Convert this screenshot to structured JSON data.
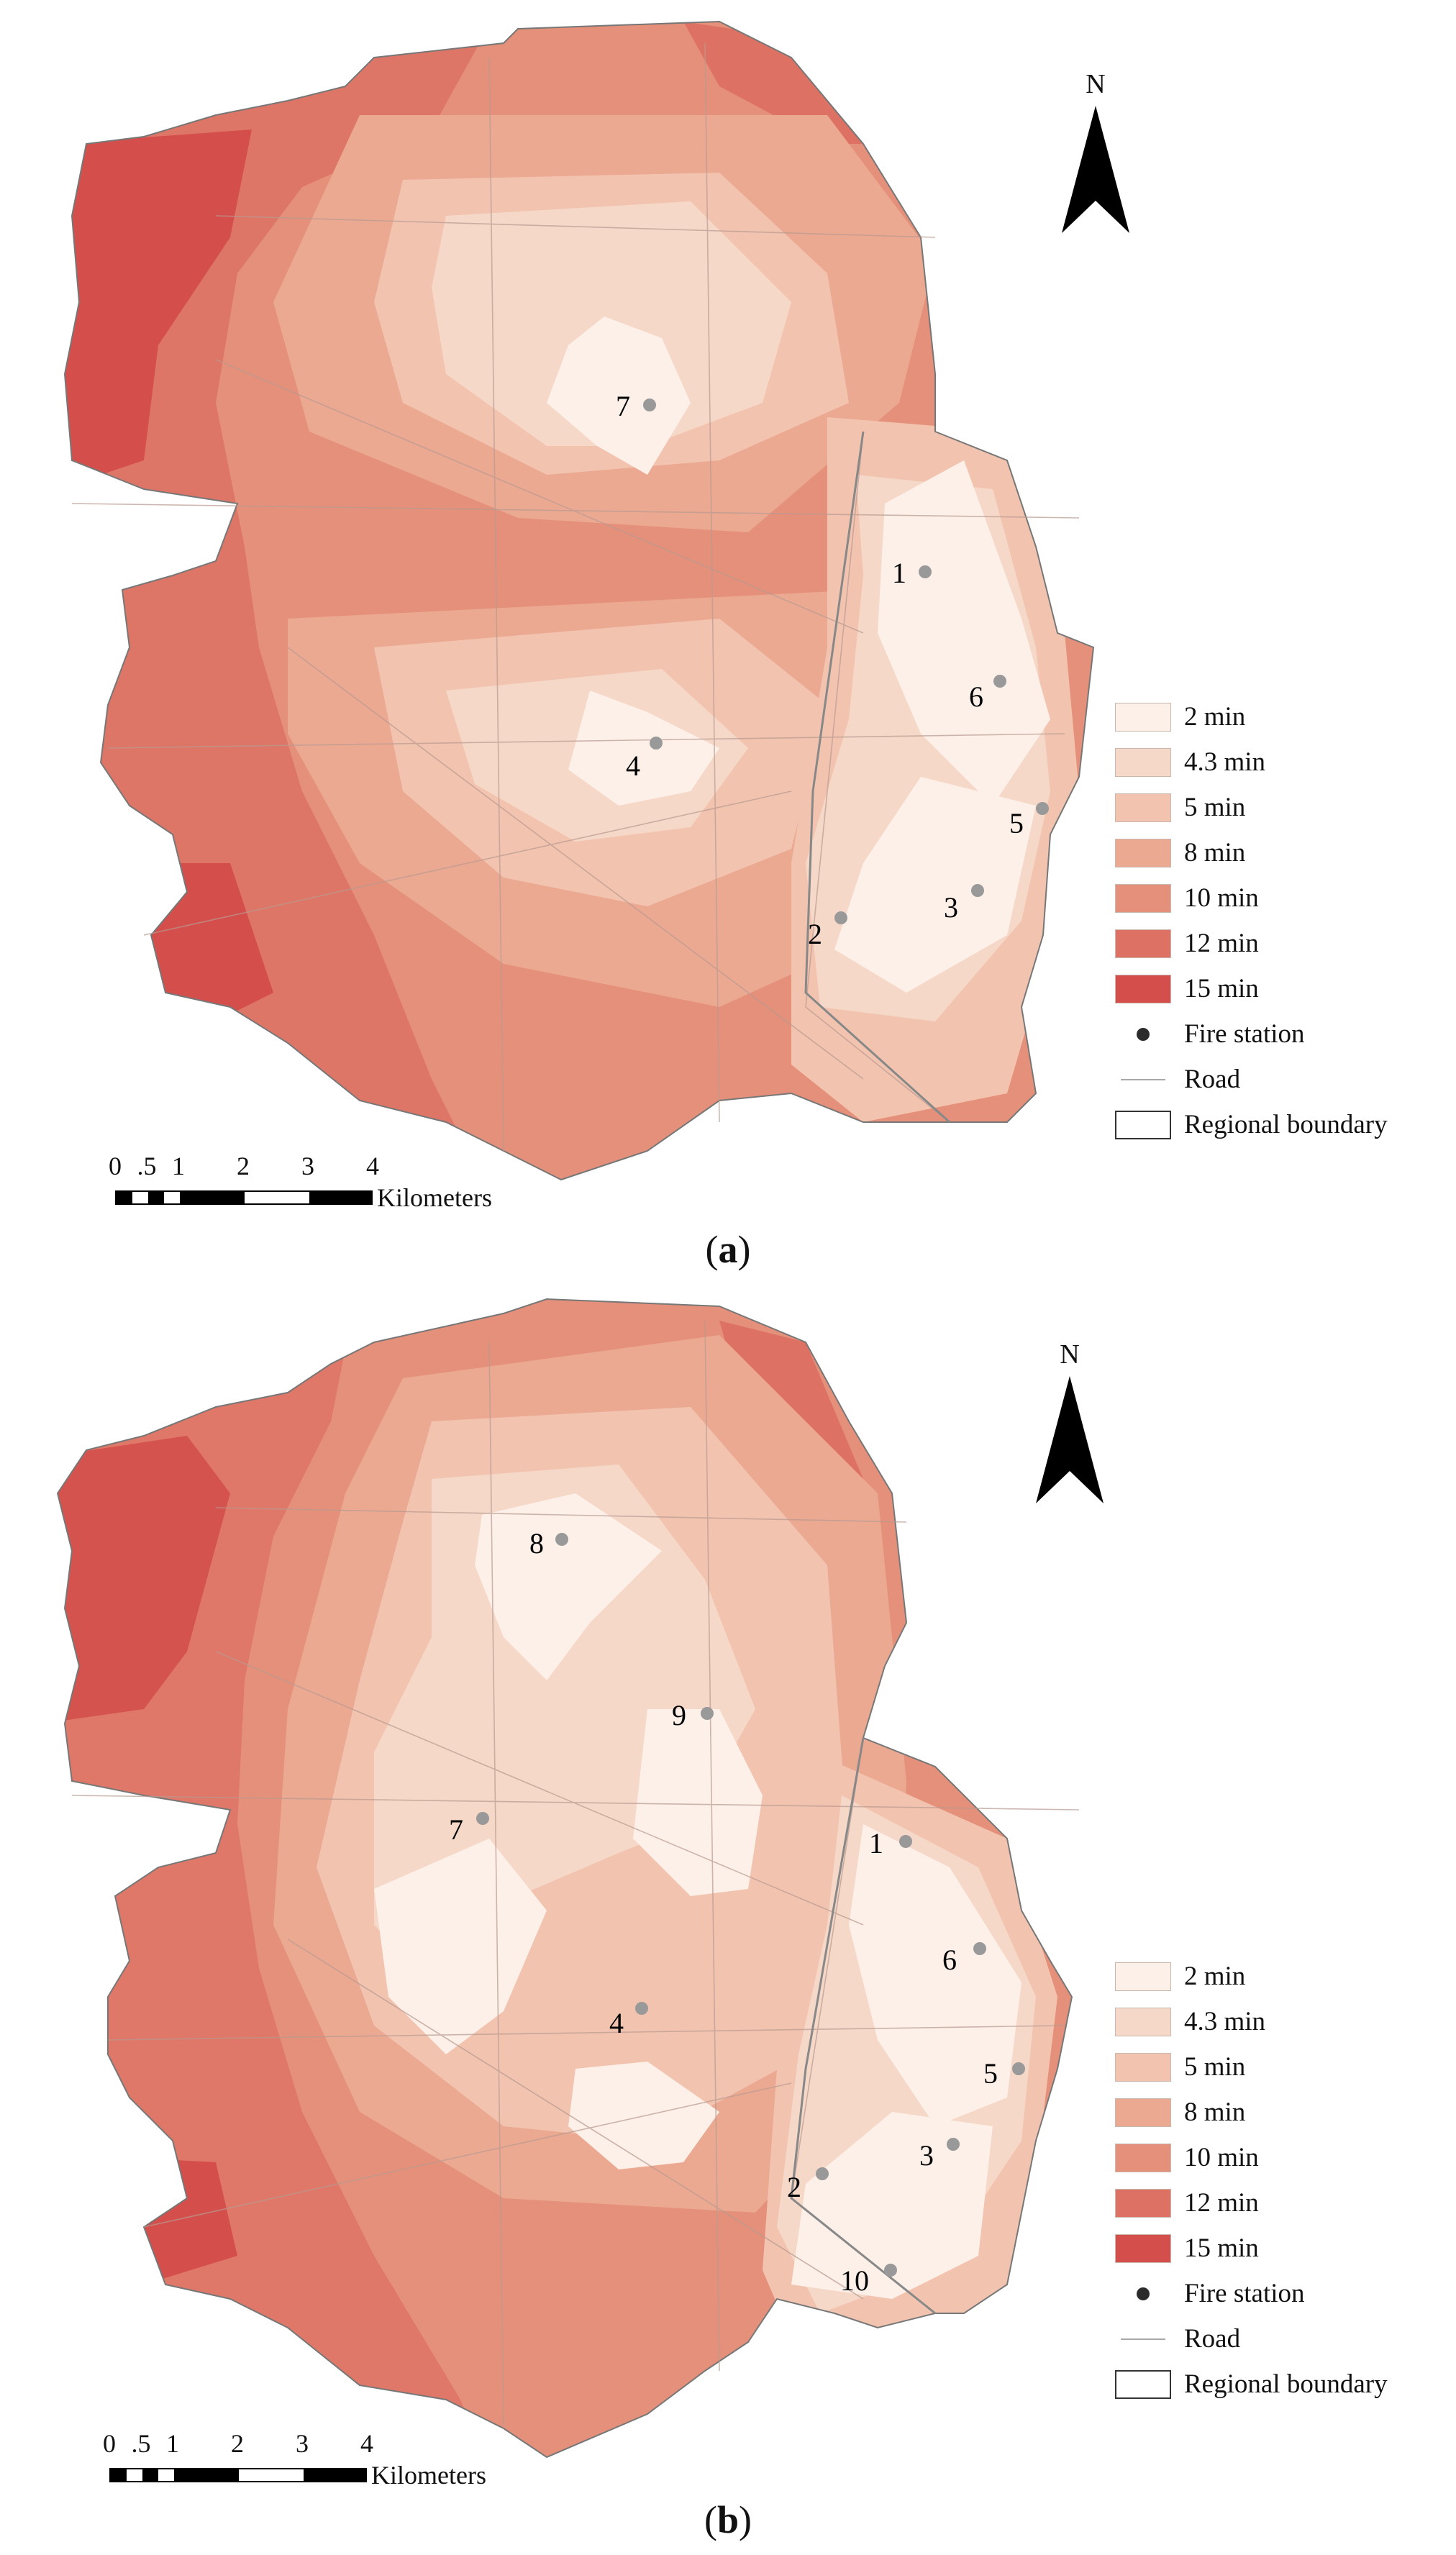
{
  "panels": [
    {
      "caption": "a",
      "north_label": "N",
      "legend": {
        "zones": [
          {
            "label": "2 min",
            "color": "#fdf0e8"
          },
          {
            "label": "4.3 min",
            "color": "#f6d8c8"
          },
          {
            "label": "5 min",
            "color": "#f2c4b0"
          },
          {
            "label": "8 min",
            "color": "#eba992"
          },
          {
            "label": "10 min",
            "color": "#e5907a"
          },
          {
            "label": "12 min",
            "color": "#dd7264"
          },
          {
            "label": "15 min",
            "color": "#d44f4c"
          }
        ],
        "fire_station": "Fire station",
        "road": "Road",
        "boundary": "Regional boundary"
      },
      "scale": {
        "ticks": [
          "0",
          ".5",
          "1",
          "2",
          "3",
          "4"
        ],
        "unit": "Kilometers"
      },
      "stations": [
        "7",
        "1",
        "6",
        "4",
        "5",
        "3",
        "2"
      ]
    },
    {
      "caption": "b",
      "north_label": "N",
      "legend": {
        "zones": [
          {
            "label": "2 min",
            "color": "#fdf0e8"
          },
          {
            "label": "4.3 min",
            "color": "#f6d8c8"
          },
          {
            "label": "5 min",
            "color": "#f2c4b0"
          },
          {
            "label": "8 min",
            "color": "#eba992"
          },
          {
            "label": "10 min",
            "color": "#e5907a"
          },
          {
            "label": "12 min",
            "color": "#dd7264"
          },
          {
            "label": "15 min",
            "color": "#d44f4c"
          }
        ],
        "fire_station": "Fire station",
        "road": "Road",
        "boundary": "Regional boundary"
      },
      "scale": {
        "ticks": [
          "0",
          ".5",
          "1",
          "2",
          "3",
          "4"
        ],
        "unit": "Kilometers"
      },
      "stations": [
        "8",
        "9",
        "7",
        "1",
        "6",
        "4",
        "5",
        "3",
        "2",
        "10"
      ]
    }
  ]
}
